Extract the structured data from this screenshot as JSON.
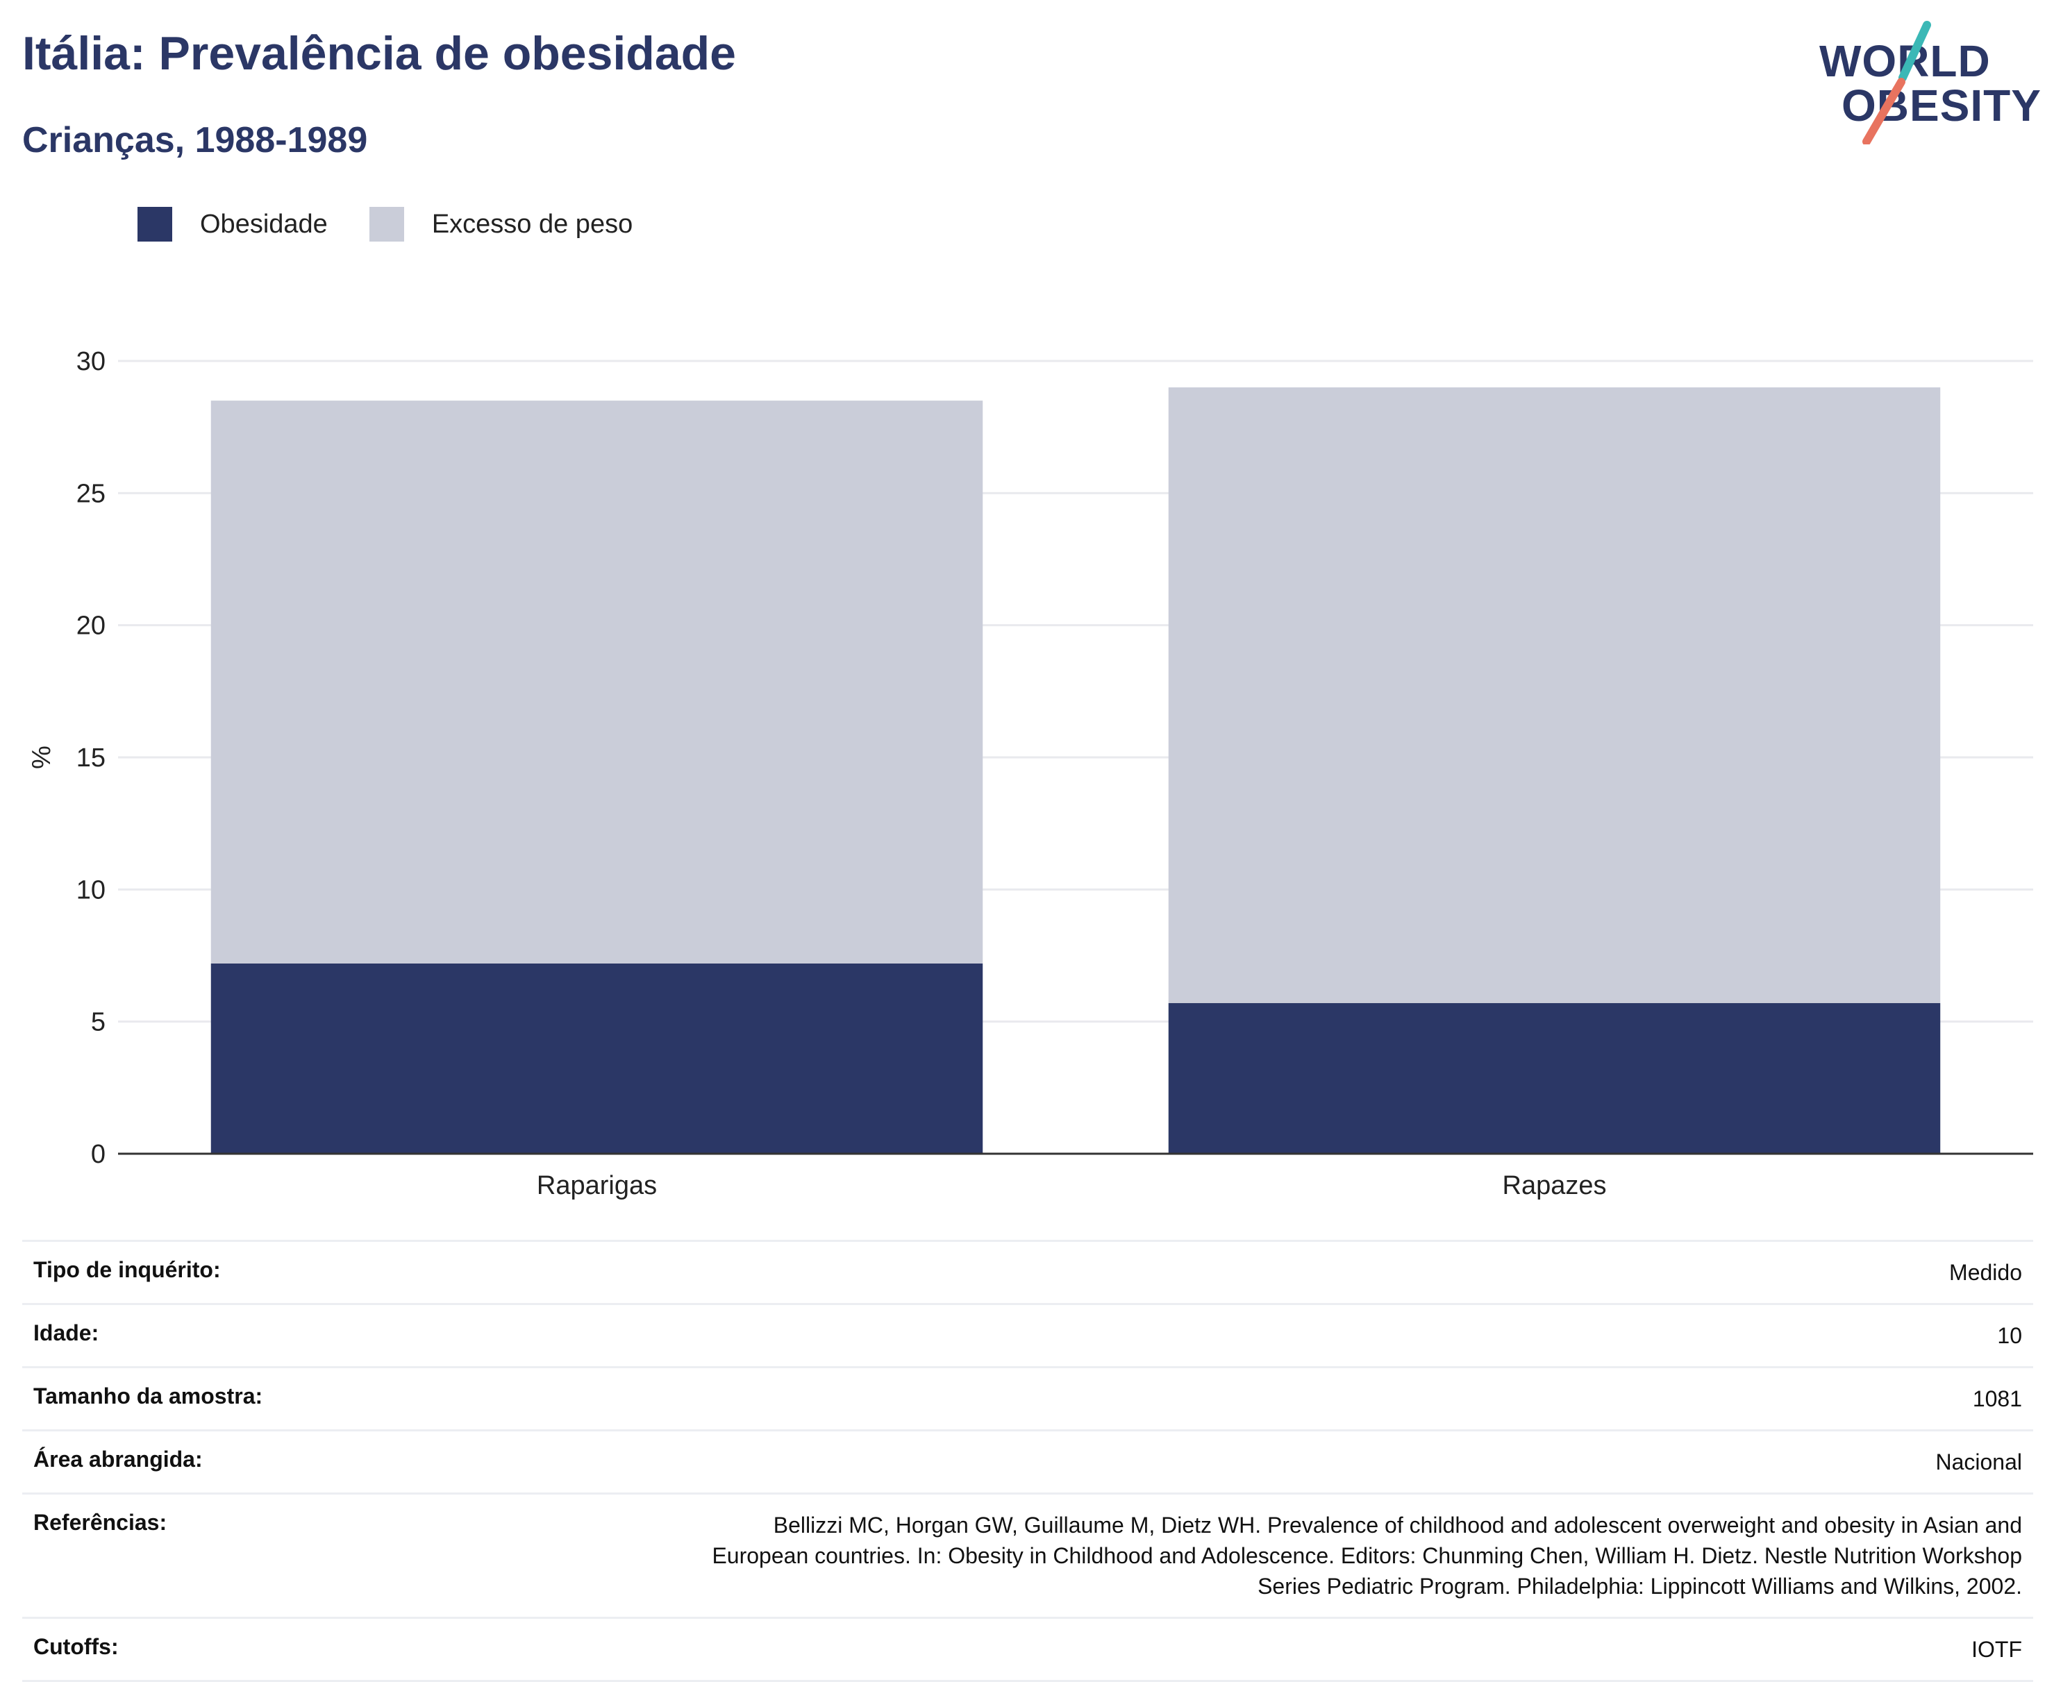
{
  "header": {
    "title": "Itália: Prevalência de obesidade",
    "subtitle": "Crianças, 1988-1989"
  },
  "logo": {
    "line1": "WORLD",
    "line2": "OBESITY",
    "accent_teal": "#3bb8b6",
    "accent_coral": "#e8735f"
  },
  "legend": [
    {
      "label": "Obesidade",
      "color": "#2b3766"
    },
    {
      "label": "Excesso de peso",
      "color": "#cacdd9"
    }
  ],
  "chart_data": {
    "type": "bar",
    "stacked": true,
    "categories": [
      "Raparigas",
      "Rapazes"
    ],
    "series": [
      {
        "name": "Obesidade",
        "color": "#2b3766",
        "values": [
          7.2,
          5.7
        ]
      },
      {
        "name": "Excesso de peso",
        "color": "#cacdd9",
        "values": [
          21.3,
          23.3
        ]
      }
    ],
    "ylabel": "%",
    "ylim": [
      0,
      30
    ],
    "yticks": [
      0,
      5,
      10,
      15,
      20,
      25,
      30
    ],
    "grid": true,
    "legend_position": "top-left"
  },
  "info": [
    {
      "label": "Tipo de inquérito:",
      "value": "Medido"
    },
    {
      "label": "Idade:",
      "value": "10"
    },
    {
      "label": "Tamanho da amostra:",
      "value": "1081"
    },
    {
      "label": "Área abrangida:",
      "value": "Nacional"
    },
    {
      "label": "Referências:",
      "value": [
        "Bellizzi MC, Horgan GW, Guillaume M, Dietz WH. Prevalence of childhood and adolescent overweight and obesity in Asian and",
        "European countries. In: Obesity in Childhood and Adolescence. Editors: Chunming Chen, William H. Dietz. Nestle Nutrition Workshop",
        "Series Pediatric Program. Philadelphia: Lippincott Williams and Wilkins, 2002."
      ]
    },
    {
      "label": "Cutoffs:",
      "value": "IOTF"
    }
  ]
}
